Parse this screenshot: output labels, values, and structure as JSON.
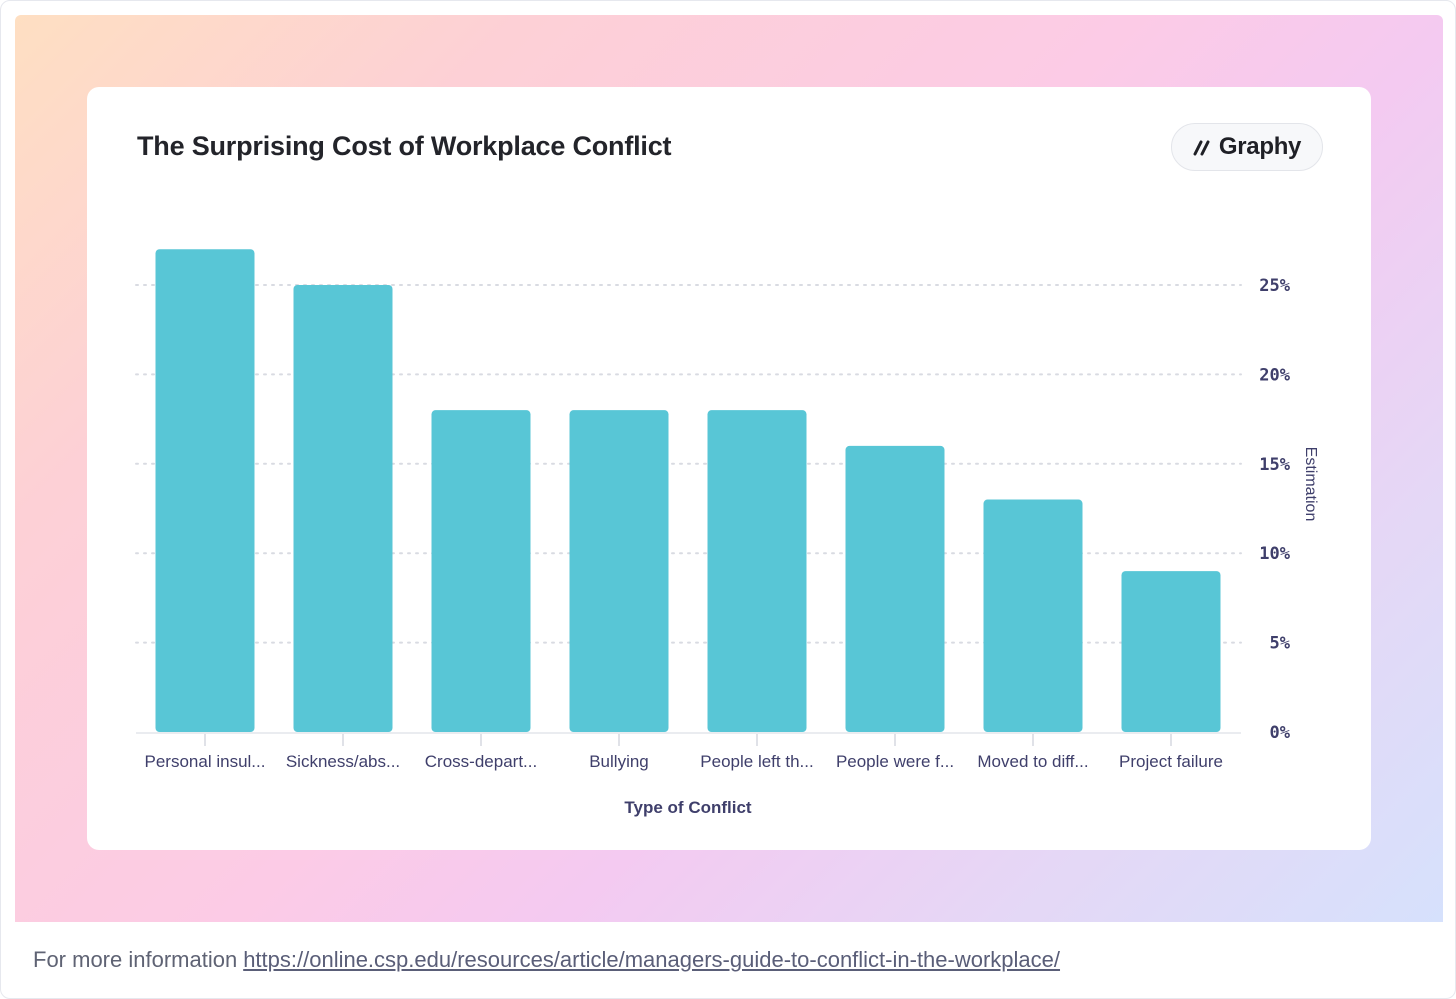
{
  "brand": {
    "name": "Graphy",
    "icon": "graphy-logo-icon"
  },
  "colors": {
    "bar": "#58c6d6",
    "axis_text": "#3f3f6b",
    "grid": "#d9dbe2"
  },
  "footer": {
    "label": "For more information",
    "link": "https://online.csp.edu/resources/article/managers-guide-to-conflict-in-the-workplace/"
  },
  "chart_data": {
    "type": "bar",
    "title": "The Surprising Cost of Workplace Conflict",
    "xlabel": "Type of Conflict",
    "ylabel": "Estimation",
    "categories": [
      "Personal insul...",
      "Sickness/abs...",
      "Cross-depart...",
      "Bullying",
      "People left th...",
      "People were f...",
      "Moved to diff...",
      "Project failure"
    ],
    "values": [
      27,
      25,
      18,
      18,
      18,
      16,
      13,
      9
    ],
    "ylim": [
      0,
      25
    ],
    "yticks": [
      "0%",
      "5%",
      "10%",
      "15%",
      "20%",
      "25%"
    ],
    "y_axis_position": "right",
    "grid": true,
    "legend": false
  }
}
